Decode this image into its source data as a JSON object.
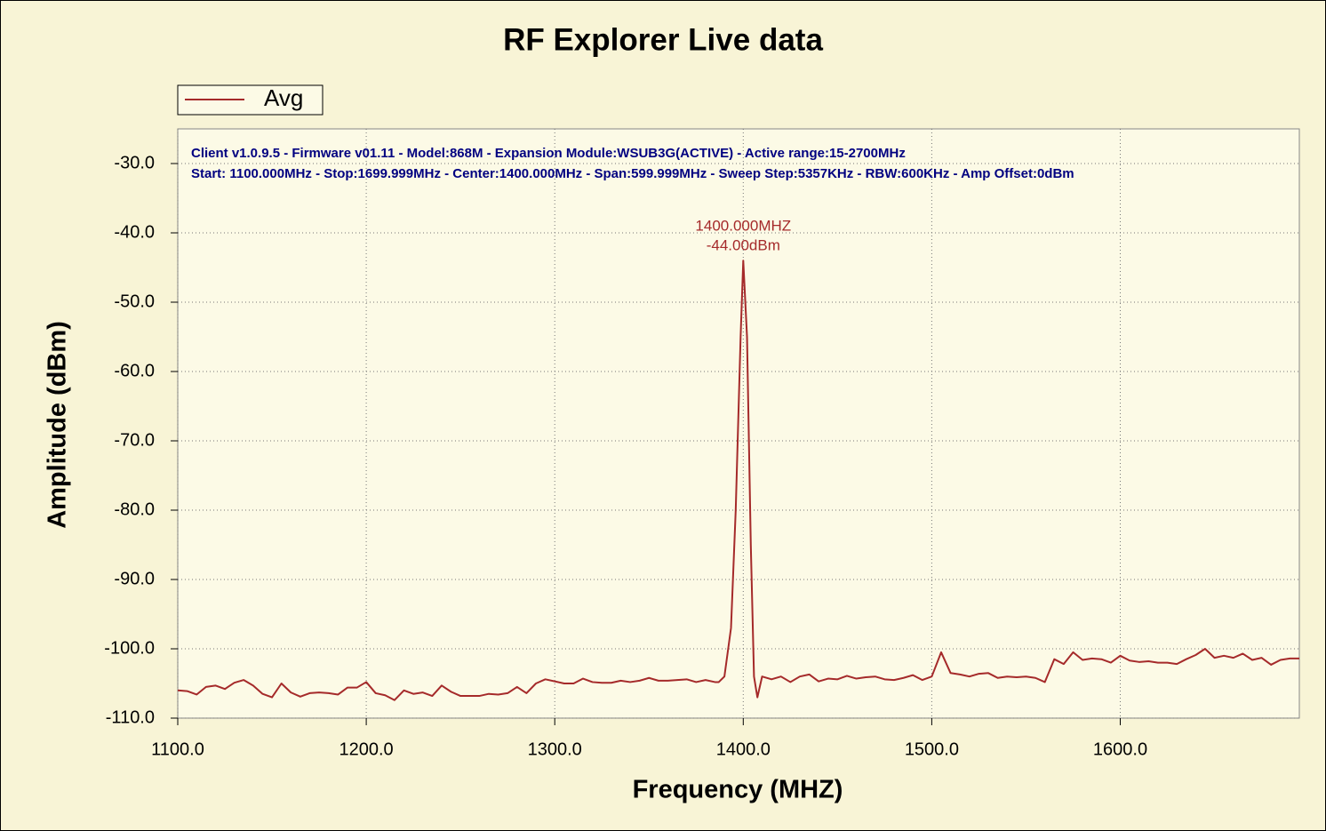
{
  "chart_data": {
    "type": "line",
    "title": "RF Explorer Live data",
    "xlabel": "Frequency (MHZ)",
    "ylabel": "Amplitude (dBm)",
    "info": [
      "Client v1.0.9.5 - Firmware v01.11 - Model:868M - Expansion Module:WSUB3G(ACTIVE) - Active range:15-2700MHz",
      "Start: 1100.000MHz - Stop:1699.999MHz - Center:1400.000MHz - Span:599.999MHz - Sweep Step:5357KHz - RBW:600KHz - Amp Offset:0dBm"
    ],
    "annotation": [
      "1400.000MHZ",
      "-44.00dBm"
    ],
    "legend": "top-left",
    "grid": true,
    "xlim": [
      1100,
      1695
    ],
    "ylim": [
      -110,
      -25
    ],
    "xticks": [
      {
        "value": 1100,
        "label": "1100.0"
      },
      {
        "value": 1200,
        "label": "1200.0"
      },
      {
        "value": 1300,
        "label": "1300.0"
      },
      {
        "value": 1400,
        "label": "1400.0"
      },
      {
        "value": 1500,
        "label": "1500.0"
      },
      {
        "value": 1600,
        "label": "1600.0"
      }
    ],
    "yticks": [
      {
        "value": -110,
        "label": "-110.0"
      },
      {
        "value": -100,
        "label": "-100.0"
      },
      {
        "value": -90,
        "label": "-90.0"
      },
      {
        "value": -80,
        "label": "-80.0"
      },
      {
        "value": -70,
        "label": "-70.0"
      },
      {
        "value": -60,
        "label": "-60.0"
      },
      {
        "value": -50,
        "label": "-50.0"
      },
      {
        "value": -40,
        "label": "-40.0"
      },
      {
        "value": -30,
        "label": "-30.0"
      }
    ],
    "x": [
      1100,
      1105,
      1110,
      1115,
      1120,
      1125,
      1130,
      1135,
      1140,
      1145,
      1150,
      1155,
      1160,
      1165,
      1170,
      1175,
      1180,
      1185,
      1190,
      1195,
      1200,
      1205,
      1210,
      1215,
      1220,
      1225,
      1230,
      1235,
      1240,
      1245,
      1250,
      1255,
      1260,
      1265,
      1270,
      1275,
      1280,
      1285,
      1290,
      1295,
      1300,
      1305,
      1310,
      1315,
      1320,
      1325,
      1330,
      1335,
      1340,
      1345,
      1350,
      1355,
      1360,
      1365,
      1370,
      1375,
      1380,
      1385,
      1387,
      1390,
      1393.5,
      1396,
      1398.6,
      1400,
      1402,
      1404,
      1405.7,
      1407.5,
      1410,
      1415,
      1420,
      1425,
      1430,
      1435,
      1440,
      1445,
      1450,
      1455,
      1460,
      1465,
      1470,
      1475,
      1480,
      1485,
      1490,
      1495,
      1500,
      1505,
      1510,
      1515,
      1520,
      1525,
      1530,
      1535,
      1540,
      1545,
      1550,
      1555,
      1560,
      1565,
      1570,
      1575,
      1580,
      1585,
      1590,
      1595,
      1600,
      1605,
      1610,
      1615,
      1620,
      1625,
      1630,
      1635,
      1640,
      1645,
      1650,
      1655,
      1660,
      1665,
      1670,
      1675,
      1680,
      1685,
      1690,
      1695
    ],
    "series": [
      {
        "name": "Avg",
        "color": "#a52a2a",
        "values": [
          -106.0,
          -106.1,
          -106.6,
          -105.5,
          -105.3,
          -105.8,
          -104.9,
          -104.5,
          -105.3,
          -106.5,
          -107.0,
          -105.0,
          -106.3,
          -106.9,
          -106.4,
          -106.3,
          -106.4,
          -106.6,
          -105.6,
          -105.6,
          -104.8,
          -106.4,
          -106.7,
          -107.4,
          -106.0,
          -106.5,
          -106.3,
          -106.8,
          -105.3,
          -106.2,
          -106.8,
          -106.8,
          -106.8,
          -106.5,
          -106.6,
          -106.4,
          -105.5,
          -106.4,
          -105.0,
          -104.4,
          -104.7,
          -105.0,
          -105.0,
          -104.3,
          -104.8,
          -104.9,
          -104.9,
          -104.6,
          -104.8,
          -104.6,
          -104.2,
          -104.6,
          -104.6,
          -104.5,
          -104.4,
          -104.8,
          -104.5,
          -104.8,
          -104.8,
          -104.0,
          -97.0,
          -80.0,
          -55.0,
          -44.0,
          -55.0,
          -85.0,
          -104.0,
          -107.0,
          -104.0,
          -104.4,
          -104.0,
          -104.8,
          -104.0,
          -103.7,
          -104.7,
          -104.3,
          -104.4,
          -103.9,
          -104.3,
          -104.1,
          -104.0,
          -104.4,
          -104.5,
          -104.2,
          -103.8,
          -104.5,
          -104.0,
          -100.5,
          -103.5,
          -103.7,
          -104.0,
          -103.6,
          -103.5,
          -104.2,
          -104.0,
          -104.1,
          -104.0,
          -104.2,
          -104.8,
          -101.5,
          -102.2,
          -100.5,
          -101.6,
          -101.4,
          -101.5,
          -102.0,
          -101.0,
          -101.7,
          -101.9,
          -101.8,
          -102.0,
          -102.0,
          -102.2,
          -101.5,
          -100.9,
          -100.0,
          -101.3,
          -101.0,
          -101.3,
          -100.7,
          -101.6,
          -101.3,
          -102.3,
          -101.6,
          -101.4,
          -101.4
        ]
      }
    ]
  }
}
